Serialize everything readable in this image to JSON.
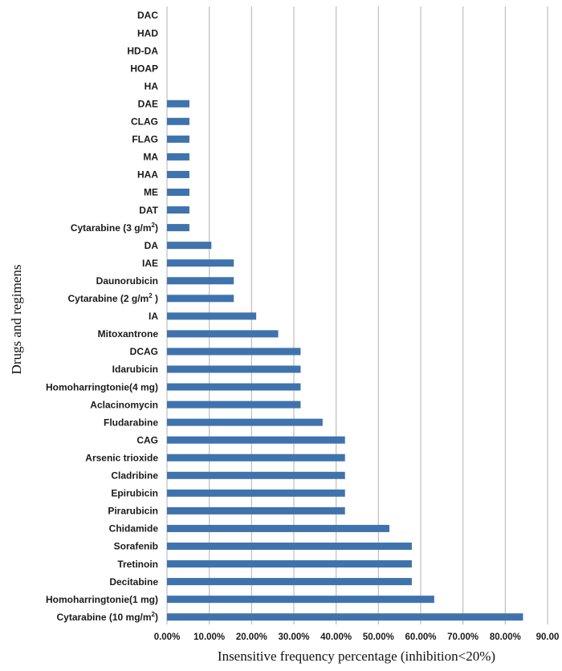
{
  "chart_data": {
    "type": "bar",
    "orientation": "horizontal",
    "title": "",
    "xlabel": "Insensitive frequency percentage (inhibition<20%)",
    "ylabel": "Drugs and regimens",
    "xlim": [
      0,
      90
    ],
    "xticks": [
      "0.00%",
      "10.00%",
      "20.00%",
      "30.00%",
      "40.00%",
      "50.00%",
      "60.00%",
      "70.00%",
      "80.00%",
      "90.00"
    ],
    "grid": "vertical",
    "bar_color": "#3f73ad",
    "grid_color": "#bdbdbd",
    "categories": [
      {
        "label": "DAC",
        "sup": ""
      },
      {
        "label": "HAD",
        "sup": ""
      },
      {
        "label": "HD-DA",
        "sup": ""
      },
      {
        "label": "HOAP",
        "sup": ""
      },
      {
        "label": "HA",
        "sup": ""
      },
      {
        "label": "DAE",
        "sup": ""
      },
      {
        "label": "CLAG",
        "sup": ""
      },
      {
        "label": "FLAG",
        "sup": ""
      },
      {
        "label": "MA",
        "sup": ""
      },
      {
        "label": "HAA",
        "sup": ""
      },
      {
        "label": "ME",
        "sup": ""
      },
      {
        "label": "DAT",
        "sup": ""
      },
      {
        "label": "Cytarabine (3 g/m",
        "sup": "2",
        "post": ")"
      },
      {
        "label": "DA",
        "sup": ""
      },
      {
        "label": "IAE",
        "sup": ""
      },
      {
        "label": "Daunorubicin",
        "sup": ""
      },
      {
        "label": "Cytarabine (2 g/m",
        "sup": "2",
        "post": " )"
      },
      {
        "label": "IA",
        "sup": ""
      },
      {
        "label": "Mitoxantrone",
        "sup": ""
      },
      {
        "label": "DCAG",
        "sup": ""
      },
      {
        "label": "Idarubicin",
        "sup": ""
      },
      {
        "label": "Homoharringtonie(4 mg)",
        "sup": ""
      },
      {
        "label": "Aclacinomycin",
        "sup": ""
      },
      {
        "label": "Fludarabine",
        "sup": ""
      },
      {
        "label": "CAG",
        "sup": ""
      },
      {
        "label": "Arsenic trioxide",
        "sup": ""
      },
      {
        "label": "Cladribine",
        "sup": ""
      },
      {
        "label": "Epirubicin",
        "sup": ""
      },
      {
        "label": "Pirarubicin",
        "sup": ""
      },
      {
        "label": "Chidamide",
        "sup": ""
      },
      {
        "label": "Sorafenib",
        "sup": ""
      },
      {
        "label": "Tretinoin",
        "sup": ""
      },
      {
        "label": "Decitabine",
        "sup": ""
      },
      {
        "label": "Homoharringtonie(1 mg)",
        "sup": ""
      },
      {
        "label": "Cytarabine (10 mg/m",
        "sup": "2",
        "post": ")"
      }
    ],
    "values": [
      0,
      0,
      0,
      0,
      0,
      5.3,
      5.3,
      5.3,
      5.3,
      5.3,
      5.3,
      5.3,
      5.3,
      10.5,
      15.8,
      15.8,
      15.8,
      21.1,
      26.3,
      31.6,
      31.6,
      31.6,
      31.6,
      36.8,
      42.1,
      42.1,
      42.1,
      42.1,
      42.1,
      52.6,
      57.9,
      57.9,
      57.9,
      63.2,
      84.2
    ]
  }
}
